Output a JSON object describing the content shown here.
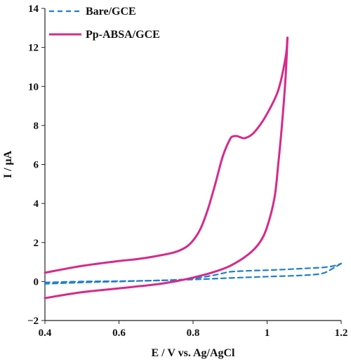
{
  "chart_data": {
    "type": "line",
    "xlabel": "E / V vs. Ag/AgCl",
    "ylabel": "I / μA",
    "xlim": [
      0.4,
      1.2
    ],
    "ylim": [
      -2,
      14
    ],
    "xticks": [
      "0.4",
      "0.6",
      "0.8",
      "1",
      "1.2"
    ],
    "xtick_values": [
      0.4,
      0.6,
      0.8,
      1.0,
      1.2
    ],
    "yticks": [
      "−2",
      "0",
      "2",
      "4",
      "6",
      "8",
      "10",
      "12",
      "14"
    ],
    "ytick_values": [
      -2,
      0,
      2,
      4,
      6,
      8,
      10,
      12,
      14
    ],
    "grid": false,
    "legend_position": "top-left",
    "series": [
      {
        "name": "Bare/GCE",
        "color": "#1f7fd0",
        "style": "dashed",
        "forward": [
          [
            0.4,
            -0.05
          ],
          [
            0.5,
            0.0
          ],
          [
            0.6,
            0.02
          ],
          [
            0.7,
            0.05
          ],
          [
            0.75,
            0.08
          ],
          [
            0.8,
            0.15
          ],
          [
            0.85,
            0.3
          ],
          [
            0.88,
            0.42
          ],
          [
            0.9,
            0.5
          ],
          [
            0.95,
            0.55
          ],
          [
            1.0,
            0.58
          ],
          [
            1.05,
            0.62
          ],
          [
            1.1,
            0.67
          ],
          [
            1.15,
            0.72
          ],
          [
            1.18,
            0.8
          ],
          [
            1.2,
            0.92
          ]
        ],
        "reverse": [
          [
            1.2,
            0.92
          ],
          [
            1.18,
            0.7
          ],
          [
            1.15,
            0.42
          ],
          [
            1.1,
            0.32
          ],
          [
            1.0,
            0.25
          ],
          [
            0.9,
            0.18
          ],
          [
            0.8,
            0.1
          ],
          [
            0.7,
            0.05
          ],
          [
            0.6,
            0.0
          ],
          [
            0.5,
            -0.05
          ],
          [
            0.4,
            -0.12
          ]
        ]
      },
      {
        "name": "Pp-ABSA/GCE",
        "color": "#d62a8a",
        "style": "solid",
        "forward": [
          [
            0.4,
            -0.85
          ],
          [
            0.5,
            -0.55
          ],
          [
            0.6,
            -0.35
          ],
          [
            0.7,
            -0.15
          ],
          [
            0.75,
            0.0
          ],
          [
            0.8,
            0.2
          ],
          [
            0.85,
            0.45
          ],
          [
            0.9,
            0.8
          ],
          [
            0.95,
            1.4
          ],
          [
            0.98,
            2.0
          ],
          [
            1.0,
            2.8
          ],
          [
            1.02,
            4.3
          ],
          [
            1.03,
            6.0
          ],
          [
            1.04,
            8.0
          ],
          [
            1.05,
            10.5
          ],
          [
            1.055,
            12.5
          ]
        ],
        "reverse": [
          [
            1.055,
            12.5
          ],
          [
            1.05,
            11.5
          ],
          [
            1.03,
            9.8
          ],
          [
            1.0,
            8.6
          ],
          [
            0.98,
            8.0
          ],
          [
            0.96,
            7.55
          ],
          [
            0.94,
            7.35
          ],
          [
            0.93,
            7.38
          ],
          [
            0.92,
            7.45
          ],
          [
            0.91,
            7.45
          ],
          [
            0.9,
            7.3
          ],
          [
            0.88,
            6.4
          ],
          [
            0.86,
            5.0
          ],
          [
            0.84,
            3.7
          ],
          [
            0.82,
            2.7
          ],
          [
            0.8,
            2.1
          ],
          [
            0.78,
            1.75
          ],
          [
            0.75,
            1.5
          ],
          [
            0.7,
            1.3
          ],
          [
            0.65,
            1.15
          ],
          [
            0.6,
            1.05
          ],
          [
            0.5,
            0.8
          ],
          [
            0.4,
            0.45
          ]
        ]
      }
    ]
  }
}
